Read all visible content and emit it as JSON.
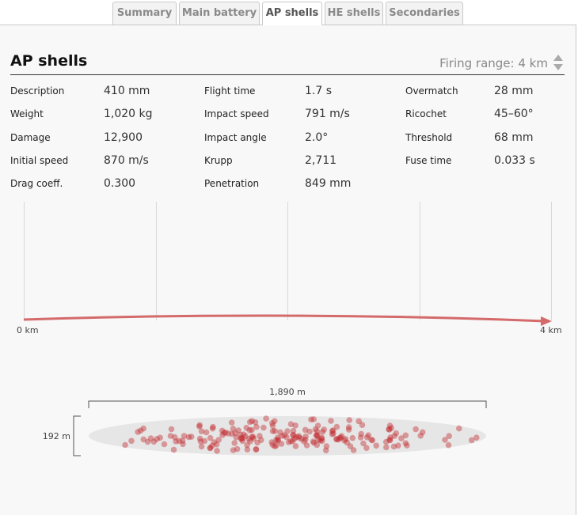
{
  "tabs": [
    {
      "label": "Summary"
    },
    {
      "label": "Main battery"
    },
    {
      "label": "AP shells"
    },
    {
      "label": "HE shells"
    },
    {
      "label": "Secondaries"
    }
  ],
  "section": {
    "title": "AP shells",
    "range_label": "Firing range:",
    "range_value": "4 km"
  },
  "stats": {
    "col1": [
      {
        "label": "Description",
        "value": "410 mm"
      },
      {
        "label": "Weight",
        "value": "1,020 kg"
      },
      {
        "label": "Damage",
        "value": "12,900"
      },
      {
        "label": "Initial speed",
        "value": "870 m/s"
      },
      {
        "label": "Drag coeff.",
        "value": "0.300"
      }
    ],
    "col2": [
      {
        "label": "Flight time",
        "value": "1.7 s"
      },
      {
        "label": "Impact speed",
        "value": "791 m/s"
      },
      {
        "label": "Impact angle",
        "value": "2.0°"
      },
      {
        "label": "Krupp",
        "value": "2,711"
      },
      {
        "label": "Penetration",
        "value": "849 mm"
      }
    ],
    "col3": [
      {
        "label": "Overmatch",
        "value": "28 mm"
      },
      {
        "label": "Ricochet",
        "value": "45–60°"
      },
      {
        "label": "Threshold",
        "value": "68 mm"
      },
      {
        "label": "Fuse time",
        "value": "0.033 s"
      }
    ]
  },
  "trajectory": {
    "start_label": "0 km",
    "end_label": "4 km",
    "color": "#d46a6a"
  },
  "dispersion": {
    "width_label": "1,890 m",
    "height_label": "192 m",
    "dot_color": "#c0282d",
    "ellipse_color": "#e6e6e6"
  }
}
